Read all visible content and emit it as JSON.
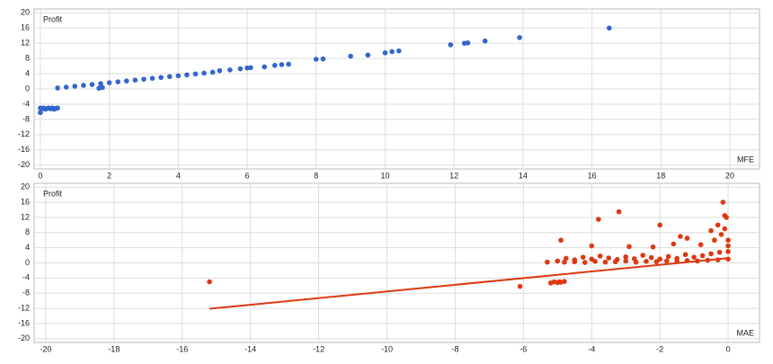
{
  "chart_data": [
    {
      "type": "scatter",
      "y_label": "Profit",
      "x_label": "MFE",
      "xlim": [
        -0.18,
        20.86
      ],
      "ylim": [
        -21,
        21
      ],
      "xticks": [
        0,
        2,
        4,
        6,
        8,
        10,
        12,
        14,
        16,
        18,
        20
      ],
      "yticks": [
        -20,
        -16,
        -12,
        -8,
        -4,
        0,
        4,
        8,
        12,
        16,
        20
      ],
      "grid": true,
      "series": [
        {
          "color": "#3366cc",
          "x": [
            0,
            0.05,
            0.1,
            0.15,
            0.2,
            0.25,
            0.3,
            0.35,
            0.4,
            0.45,
            0.5,
            0,
            0.5,
            0.75,
            1,
            1.25,
            1.5,
            1.75,
            2,
            2.25,
            2.5,
            2.75,
            3,
            3.25,
            3.5,
            3.75,
            4,
            4.25,
            4.5,
            4.75,
            5,
            1.7,
            1.8,
            5.2,
            5.5,
            5.8,
            6,
            6.1,
            6.5,
            6.8,
            7,
            7.2,
            8,
            8.2,
            9,
            9.5,
            10,
            10.2,
            10.4,
            11.9,
            12.3,
            12.4,
            12.9,
            13.9,
            16.5
          ],
          "values": [
            -5,
            -5.2,
            -5,
            -5.3,
            -5.1,
            -5,
            -5.2,
            -5,
            -5.3,
            -5.1,
            -5,
            -6.2,
            0.26,
            0.49,
            0.72,
            0.95,
            1.18,
            1.41,
            1.64,
            1.87,
            2.1,
            2.33,
            2.56,
            2.79,
            3.02,
            3.25,
            3.48,
            3.71,
            3.94,
            4.17,
            4.4,
            0.2,
            0.4,
            4.8,
            5,
            5.3,
            5.5,
            5.6,
            5.8,
            6.2,
            6.4,
            6.5,
            7.8,
            7.9,
            8.6,
            8.9,
            9.5,
            9.8,
            10,
            11.6,
            12,
            12.1,
            12.6,
            13.5,
            16
          ]
        }
      ]
    },
    {
      "type": "scatter",
      "y_label": "Profit",
      "x_label": "MAE",
      "xlim": [
        -20.34,
        0.92
      ],
      "ylim": [
        -21,
        21
      ],
      "xticks": [
        -20,
        -18,
        -16,
        -14,
        -12,
        -10,
        -8,
        -6,
        -4,
        -2,
        0
      ],
      "yticks": [
        -20,
        -16,
        -12,
        -8,
        -4,
        0,
        4,
        8,
        12,
        16,
        20
      ],
      "grid": true,
      "series": [
        {
          "color": "#dc3912",
          "x": [
            -5,
            -4.75,
            -4.5,
            -4.25,
            -4,
            -3.75,
            -3.5,
            -3.25,
            -3,
            -2.75,
            -2.5,
            -2.25,
            -2,
            -1.75,
            -1.5,
            -1.25,
            -1,
            -0.75,
            -0.5,
            -0.25,
            0,
            -4.8,
            -4.5,
            -4.2,
            -3.9,
            -3.6,
            -3.3,
            -3,
            -2.7,
            -2.4,
            -2.1,
            -1.8,
            -1.5,
            -1.2,
            -0.9,
            -0.6,
            -0.3,
            0,
            -3.2,
            -3.8,
            -2,
            -1.4,
            -1.2,
            -0.5,
            -0.3,
            -0.1,
            -0.15,
            -0.05,
            -4.9,
            -4,
            -2.9,
            -2.2,
            -1.6,
            -0.8,
            -0.4,
            -0.2,
            -0.1,
            0,
            0,
            -15.2,
            -6.1,
            -5.1,
            -5,
            -4.95,
            -4.9,
            -5.2,
            -4.8,
            -5.3
          ],
          "values": [
            0.5,
            1.2,
            0.8,
            1.5,
            1,
            1.8,
            1.3,
            0.9,
            1.6,
            1.1,
            2,
            1.4,
            1,
            1.7,
            1.2,
            2.2,
            1.5,
            1.9,
            2.4,
            2.8,
            3,
            0.2,
            0.3,
            0.1,
            0.4,
            0.2,
            0.3,
            0.5,
            0.2,
            0.4,
            0.3,
            0.5,
            0.4,
            0.6,
            0.5,
            0.7,
            0.8,
            1,
            13.5,
            11.5,
            10,
            7,
            6.5,
            8.5,
            10,
            12.5,
            16,
            12,
            6,
            4.5,
            4.3,
            4.2,
            5,
            4.8,
            6,
            7.5,
            9,
            4.5,
            6,
            -5,
            -6.2,
            -5,
            -5.2,
            -5,
            -5.1,
            -5.3,
            -4.9,
            0.2
          ]
        }
      ],
      "trendline": {
        "color": "#dc3912",
        "x": [
          -15.2,
          0
        ],
        "values": [
          -12.1,
          1.25
        ]
      }
    }
  ]
}
